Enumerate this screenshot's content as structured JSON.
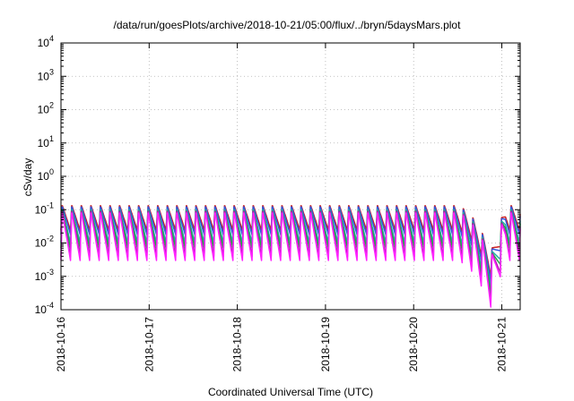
{
  "chart_data": {
    "type": "line",
    "title": "/data/run/goesPlots/archive/2018-10-21/05:00/flux/../bryn/5daysMars.plot",
    "xlabel": "Coordinated Universal Time (UTC)",
    "ylabel": "cSv/day",
    "y_scale": "log",
    "ylim": [
      0.0001,
      10000
    ],
    "y_ticks": [
      {
        "value": 0.0001,
        "base": "10",
        "exp": "-4"
      },
      {
        "value": 0.001,
        "base": "10",
        "exp": "-3"
      },
      {
        "value": 0.01,
        "base": "10",
        "exp": "-2"
      },
      {
        "value": 0.1,
        "base": "10",
        "exp": "-1"
      },
      {
        "value": 1,
        "base": "10",
        "exp": "0"
      },
      {
        "value": 10,
        "base": "10",
        "exp": "1"
      },
      {
        "value": 100,
        "base": "10",
        "exp": "2"
      },
      {
        "value": 1000,
        "base": "10",
        "exp": "3"
      },
      {
        "value": 10000,
        "base": "10",
        "exp": "4"
      }
    ],
    "xlim": [
      "2018-10-16T00:00",
      "2018-10-21T05:00"
    ],
    "x_ticks": [
      "2018-10-16",
      "2018-10-17",
      "2018-10-18",
      "2018-10-19",
      "2018-10-20",
      "2018-10-21"
    ],
    "grid": true,
    "sawtooth_period_hours": 2.6,
    "series": [
      {
        "color": "#cc2222",
        "peak": 0.14,
        "trough": 0.024
      },
      {
        "color": "#3355dd",
        "peak": 0.13,
        "trough": 0.018
      },
      {
        "color": "#22aaaa",
        "peak": 0.11,
        "trough": 0.01
      },
      {
        "color": "#22aa44",
        "peak": 0.1,
        "trough": 0.007
      },
      {
        "color": "#aa22aa",
        "peak": 0.1,
        "trough": 0.004
      },
      {
        "color": "#ff22ff",
        "peak": 0.09,
        "trough": 0.003
      }
    ],
    "dip": {
      "start_hour": 107,
      "min_hour": 117,
      "end_hour": 121,
      "min_factor": 0.04
    }
  }
}
